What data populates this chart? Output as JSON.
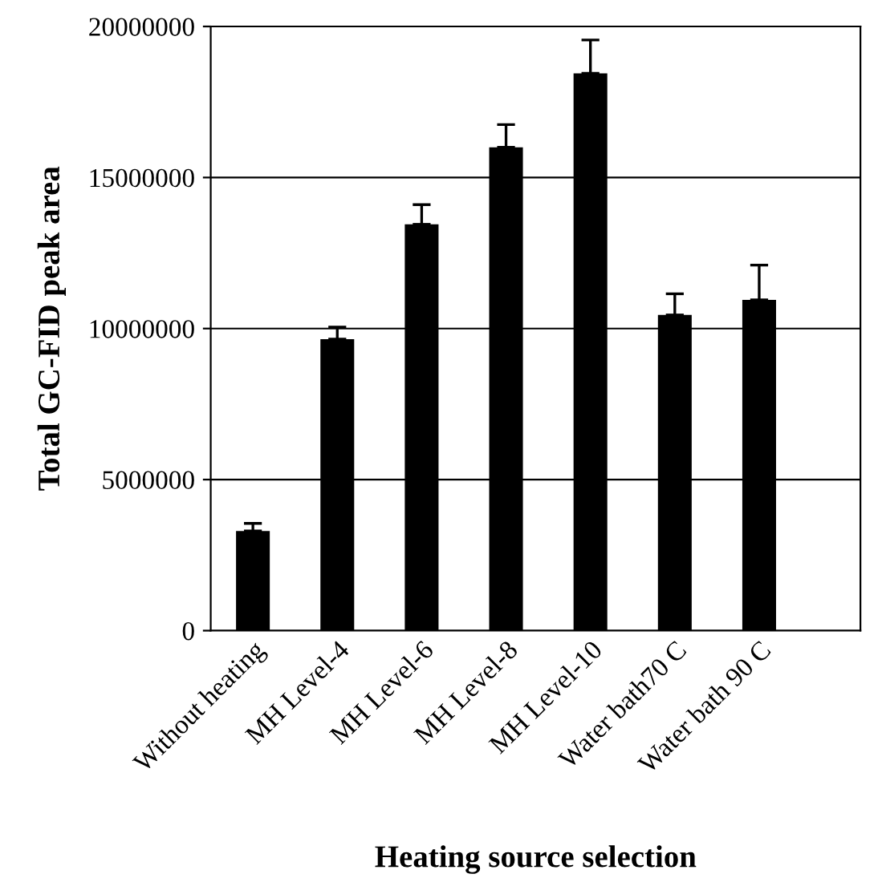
{
  "chart_data": {
    "type": "bar",
    "xlabel": "Heating source selection",
    "ylabel": "Total GC-FID peak area",
    "categories": [
      "Without heating",
      "MH Level-4",
      "MH Level-6",
      "MH Level-8",
      "MH Level-10",
      "Water bath70 C",
      "Water bath 90 C"
    ],
    "values": [
      3300000,
      9650000,
      13450000,
      16000000,
      18450000,
      10450000,
      10950000
    ],
    "errors": [
      [
        3300000,
        3550000
      ],
      [
        9650000,
        10050000
      ],
      [
        13450000,
        14100000
      ],
      [
        16000000,
        16750000
      ],
      [
        18450000,
        19550000
      ],
      [
        10450000,
        11150000
      ],
      [
        10950000,
        12100000
      ]
    ],
    "color": "#000000",
    "ylim": [
      0,
      20000000
    ],
    "yticks": [
      0,
      5000000,
      10000000,
      15000000,
      20000000
    ],
    "grid": "y",
    "legend": false
  }
}
